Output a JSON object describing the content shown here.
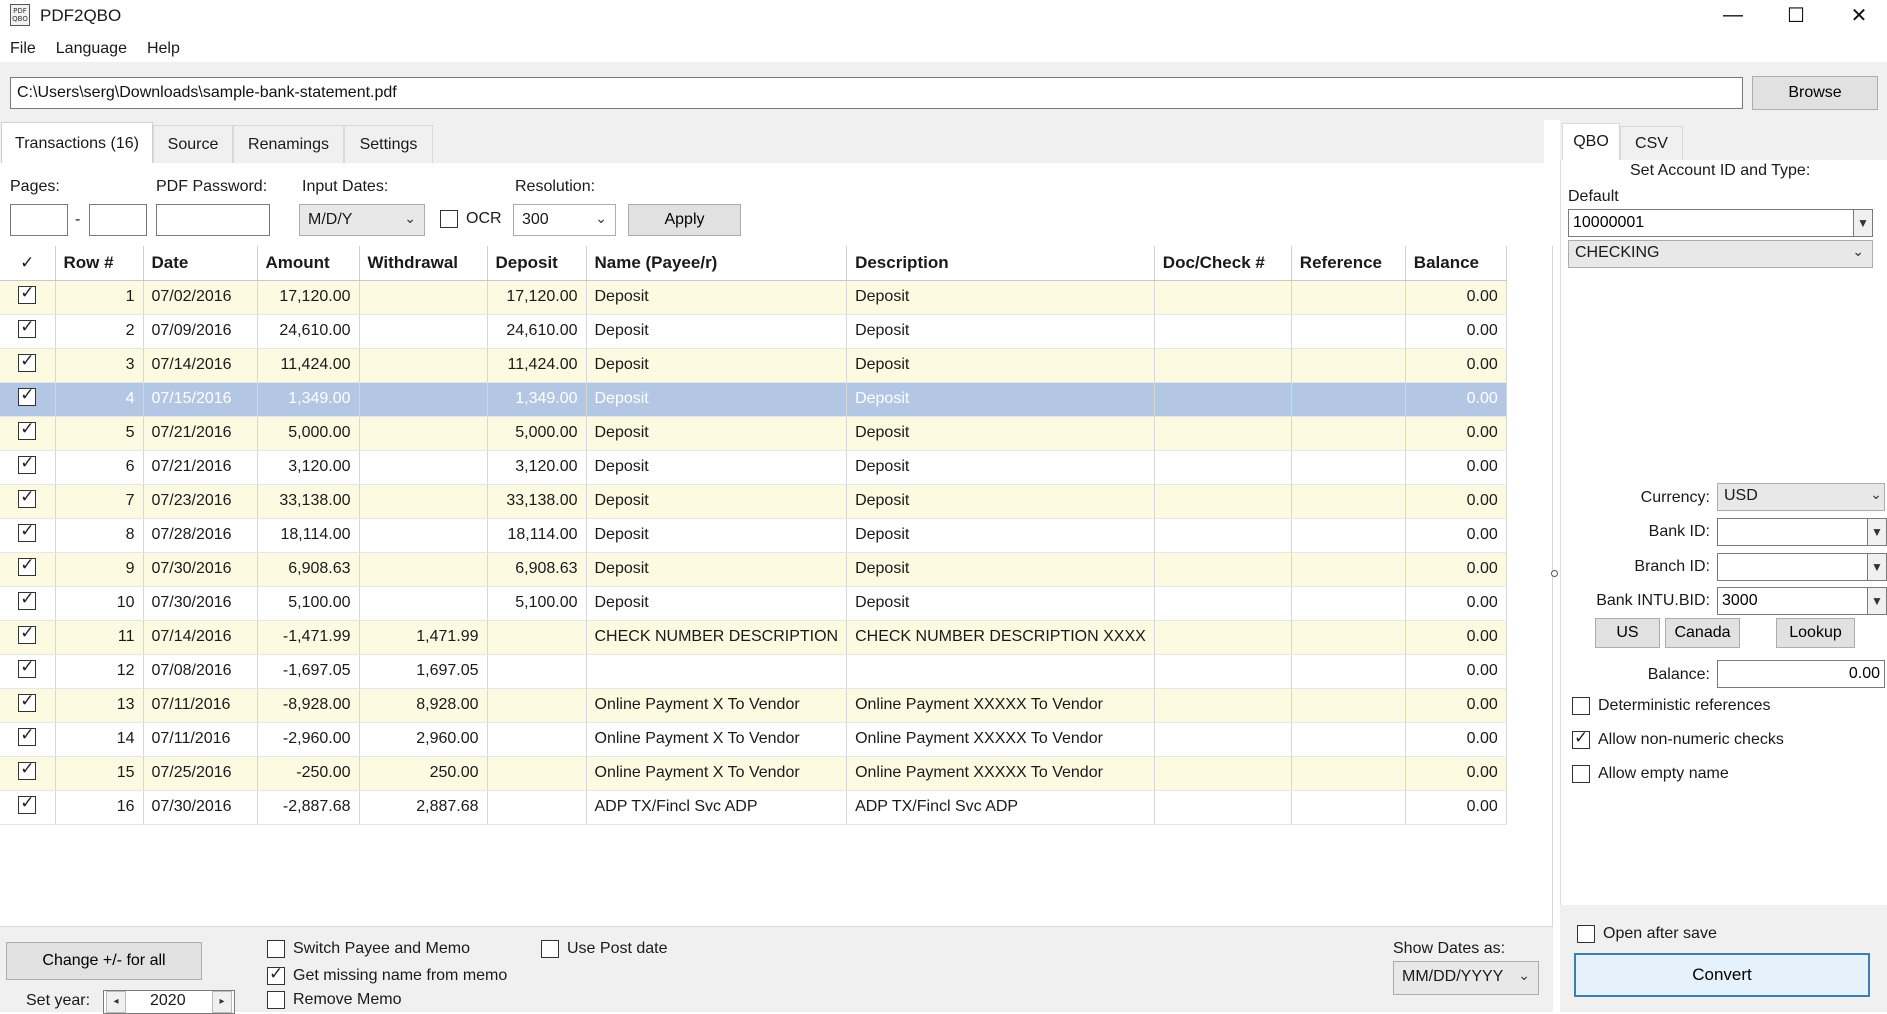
{
  "app": {
    "title": "PDF2QBO",
    "icon_text": "PDF QBO"
  },
  "window_controls": {
    "minimize": "—",
    "maximize": "☐",
    "close": "✕"
  },
  "menu": [
    "File",
    "Language",
    "Help"
  ],
  "path": {
    "value": "C:\\Users\\serg\\Downloads\\sample-bank-statement.pdf",
    "browse_label": "Browse"
  },
  "tabs": [
    {
      "label": "Transactions (16)",
      "active": true
    },
    {
      "label": "Source",
      "active": false
    },
    {
      "label": "Renamings",
      "active": false
    },
    {
      "label": "Settings",
      "active": false
    }
  ],
  "filters": {
    "pages_label": "Pages:",
    "pages_from": "",
    "pages_sep": "-",
    "pages_to": "",
    "password_label": "PDF Password:",
    "password_value": "",
    "input_dates_label": "Input Dates:",
    "input_dates_value": "M/D/Y",
    "ocr_label": "OCR",
    "ocr_checked": false,
    "resolution_label": "Resolution:",
    "resolution_value": "300",
    "apply_label": "Apply"
  },
  "grid": {
    "columns": [
      "✓",
      "Row #",
      "Date",
      "Amount",
      "Withdrawal",
      "Deposit",
      "Name (Payee/r)",
      "Description",
      "Doc/Check #",
      "Reference",
      "Balance"
    ],
    "selected_row": 4,
    "rows": [
      {
        "row": "1",
        "date": "07/02/2016",
        "amount": "17,120.00",
        "withdrawal": "",
        "deposit": "17,120.00",
        "name": "Deposit",
        "description": "Deposit",
        "doc": "",
        "reference": "",
        "balance": "0.00"
      },
      {
        "row": "2",
        "date": "07/09/2016",
        "amount": "24,610.00",
        "withdrawal": "",
        "deposit": "24,610.00",
        "name": "Deposit",
        "description": "Deposit",
        "doc": "",
        "reference": "",
        "balance": "0.00"
      },
      {
        "row": "3",
        "date": "07/14/2016",
        "amount": "11,424.00",
        "withdrawal": "",
        "deposit": "11,424.00",
        "name": "Deposit",
        "description": "Deposit",
        "doc": "",
        "reference": "",
        "balance": "0.00"
      },
      {
        "row": "4",
        "date": "07/15/2016",
        "amount": "1,349.00",
        "withdrawal": "",
        "deposit": "1,349.00",
        "name": "Deposit",
        "description": "Deposit",
        "doc": "",
        "reference": "",
        "balance": "0.00"
      },
      {
        "row": "5",
        "date": "07/21/2016",
        "amount": "5,000.00",
        "withdrawal": "",
        "deposit": "5,000.00",
        "name": "Deposit",
        "description": "Deposit",
        "doc": "",
        "reference": "",
        "balance": "0.00"
      },
      {
        "row": "6",
        "date": "07/21/2016",
        "amount": "3,120.00",
        "withdrawal": "",
        "deposit": "3,120.00",
        "name": "Deposit",
        "description": "Deposit",
        "doc": "",
        "reference": "",
        "balance": "0.00"
      },
      {
        "row": "7",
        "date": "07/23/2016",
        "amount": "33,138.00",
        "withdrawal": "",
        "deposit": "33,138.00",
        "name": "Deposit",
        "description": "Deposit",
        "doc": "",
        "reference": "",
        "balance": "0.00"
      },
      {
        "row": "8",
        "date": "07/28/2016",
        "amount": "18,114.00",
        "withdrawal": "",
        "deposit": "18,114.00",
        "name": "Deposit",
        "description": "Deposit",
        "doc": "",
        "reference": "",
        "balance": "0.00"
      },
      {
        "row": "9",
        "date": "07/30/2016",
        "amount": "6,908.63",
        "withdrawal": "",
        "deposit": "6,908.63",
        "name": "Deposit",
        "description": "Deposit",
        "doc": "",
        "reference": "",
        "balance": "0.00"
      },
      {
        "row": "10",
        "date": "07/30/2016",
        "amount": "5,100.00",
        "withdrawal": "",
        "deposit": "5,100.00",
        "name": "Deposit",
        "description": "Deposit",
        "doc": "",
        "reference": "",
        "balance": "0.00"
      },
      {
        "row": "11",
        "date": "07/14/2016",
        "amount": "-1,471.99",
        "withdrawal": "1,471.99",
        "deposit": "",
        "name": "CHECK NUMBER DESCRIPTION",
        "description": "CHECK NUMBER DESCRIPTION XXXX",
        "doc": "",
        "reference": "",
        "balance": "0.00"
      },
      {
        "row": "12",
        "date": "07/08/2016",
        "amount": "-1,697.05",
        "withdrawal": "1,697.05",
        "deposit": "",
        "name": "",
        "description": "",
        "doc": "",
        "reference": "",
        "balance": "0.00"
      },
      {
        "row": "13",
        "date": "07/11/2016",
        "amount": "-8,928.00",
        "withdrawal": "8,928.00",
        "deposit": "",
        "name": "Online Payment X To Vendor",
        "description": "Online Payment XXXXX To Vendor",
        "doc": "",
        "reference": "",
        "balance": "0.00"
      },
      {
        "row": "14",
        "date": "07/11/2016",
        "amount": "-2,960.00",
        "withdrawal": "2,960.00",
        "deposit": "",
        "name": "Online Payment X To Vendor",
        "description": "Online Payment XXXXX To Vendor",
        "doc": "",
        "reference": "",
        "balance": "0.00"
      },
      {
        "row": "15",
        "date": "07/25/2016",
        "amount": "-250.00",
        "withdrawal": "250.00",
        "deposit": "",
        "name": "Online Payment X To Vendor",
        "description": "Online Payment XXXXX To Vendor",
        "doc": "",
        "reference": "",
        "balance": "0.00"
      },
      {
        "row": "16",
        "date": "07/30/2016",
        "amount": "-2,887.68",
        "withdrawal": "2,887.68",
        "deposit": "",
        "name": "ADP TX/Fincl Svc ADP",
        "description": "ADP TX/Fincl Svc ADP",
        "doc": "",
        "reference": "",
        "balance": "0.00"
      }
    ]
  },
  "right_panel": {
    "tabs": [
      {
        "label": "QBO",
        "active": true
      },
      {
        "label": "CSV",
        "active": false
      }
    ],
    "account_heading": "Set Account ID and Type:",
    "default_label": "Default",
    "account_id": "10000001",
    "account_type": "CHECKING",
    "currency_label": "Currency:",
    "currency_value": "USD",
    "bank_id_label": "Bank ID:",
    "bank_id_value": "",
    "branch_id_label": "Branch ID:",
    "branch_id_value": "",
    "intu_bid_label": "Bank INTU.BID:",
    "intu_bid_value": "3000",
    "us_label": "US",
    "canada_label": "Canada",
    "lookup_label": "Lookup",
    "balance_label": "Balance:",
    "balance_value": "0.00",
    "options": [
      {
        "label": "Deterministic references",
        "checked": false
      },
      {
        "label": "Allow non-numeric checks",
        "checked": true
      },
      {
        "label": "Allow empty name",
        "checked": false
      }
    ],
    "open_after_save_label": "Open after save",
    "open_after_save_checked": false,
    "convert_label": "Convert"
  },
  "bottom": {
    "change_sign_label": "Change +/- for all",
    "set_year_label": "Set year:",
    "year_value": "2020",
    "options": [
      {
        "label": "Switch Payee and Memo",
        "checked": false
      },
      {
        "label": "Get missing name from memo",
        "checked": true
      },
      {
        "label": "Remove Memo",
        "checked": false
      }
    ],
    "use_post_date_label": "Use Post date",
    "use_post_date_checked": false,
    "show_dates_label": "Show Dates as:",
    "show_dates_value": "MM/DD/YYYY"
  }
}
